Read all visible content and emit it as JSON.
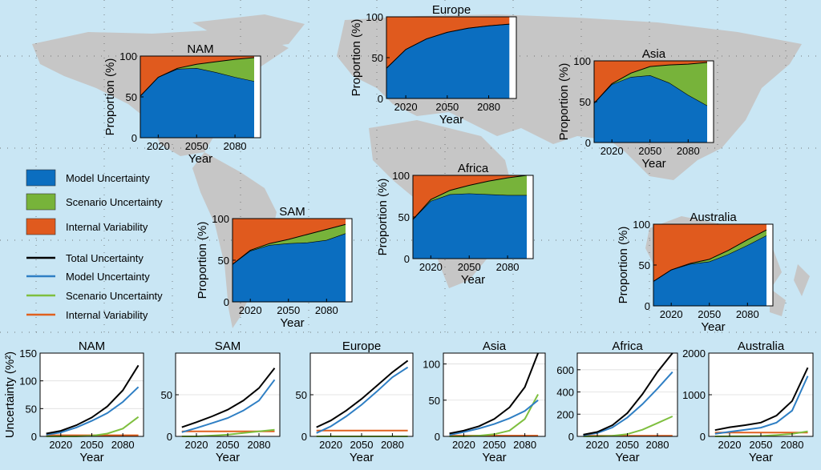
{
  "colors": {
    "ocean": "#c9e6f4",
    "land": "#c6c6c6",
    "model": "#0b6ec0",
    "scenario": "#77b33a",
    "internal": "#e05a1e",
    "total": "#000000",
    "model_line": "#2f7fc4",
    "scenario_line": "#7fbf3f",
    "internal_line": "#e0601e"
  },
  "legend": {
    "patches": [
      {
        "label": "Model Uncertainty",
        "color": "#0b6ec0"
      },
      {
        "label": "Scenario Uncertainty",
        "color": "#77b33a"
      },
      {
        "label": "Internal Variability",
        "color": "#e05a1e"
      }
    ],
    "lines": [
      {
        "label": "Total Uncertainty",
        "color": "#000000"
      },
      {
        "label": "Model Uncertainty",
        "color": "#2f7fc4"
      },
      {
        "label": "Scenario Uncertainty",
        "color": "#7fbf3f"
      },
      {
        "label": "Internal Variability",
        "color": "#e0601e"
      }
    ]
  },
  "chart_data": [
    {
      "type": "area",
      "title": "NAM",
      "xlabel": "Year",
      "ylabel": "Proportion (%)",
      "xlim": [
        2006,
        2100
      ],
      "ylim": [
        0,
        100
      ],
      "xticks": [
        2020,
        2050,
        2080
      ],
      "yticks": [
        0,
        50,
        100
      ],
      "x": [
        2006,
        2020,
        2035,
        2050,
        2065,
        2080,
        2095
      ],
      "series": [
        {
          "name": "Model Uncertainty",
          "values": [
            51,
            74,
            84,
            85,
            80,
            74,
            69
          ]
        },
        {
          "name": "Scenario Uncertainty",
          "values": [
            0,
            0,
            1,
            5,
            13,
            22,
            29
          ]
        },
        {
          "name": "Internal Variability",
          "values": [
            49,
            26,
            15,
            10,
            7,
            4,
            2
          ]
        }
      ]
    },
    {
      "type": "area",
      "title": "Europe",
      "xlabel": "Year",
      "ylabel": "Proportion (%)",
      "xlim": [
        2006,
        2100
      ],
      "ylim": [
        0,
        100
      ],
      "xticks": [
        2020,
        2050,
        2080
      ],
      "yticks": [
        0,
        50,
        100
      ],
      "x": [
        2006,
        2020,
        2035,
        2050,
        2065,
        2080,
        2095
      ],
      "series": [
        {
          "name": "Model Uncertainty",
          "values": [
            37,
            60,
            73,
            81,
            86,
            89,
            91
          ]
        },
        {
          "name": "Scenario Uncertainty",
          "values": [
            0,
            0,
            0,
            0,
            0,
            0,
            0
          ]
        },
        {
          "name": "Internal Variability",
          "values": [
            63,
            40,
            27,
            19,
            14,
            11,
            9
          ]
        }
      ]
    },
    {
      "type": "area",
      "title": "Asia",
      "xlabel": "Year",
      "ylabel": "Proportion (%)",
      "xlim": [
        2006,
        2100
      ],
      "ylim": [
        0,
        100
      ],
      "xticks": [
        2020,
        2050,
        2080
      ],
      "yticks": [
        0,
        50,
        100
      ],
      "x": [
        2006,
        2020,
        2035,
        2050,
        2065,
        2080,
        2095
      ],
      "series": [
        {
          "name": "Model Uncertainty",
          "values": [
            48,
            71,
            80,
            82,
            73,
            58,
            45
          ]
        },
        {
          "name": "Scenario Uncertainty",
          "values": [
            0,
            1,
            5,
            11,
            22,
            38,
            53
          ]
        },
        {
          "name": "Internal Variability",
          "values": [
            52,
            28,
            15,
            7,
            5,
            4,
            2
          ]
        }
      ]
    },
    {
      "type": "area",
      "title": "SAM",
      "xlabel": "Year",
      "ylabel": "Proportion (%)",
      "xlim": [
        2006,
        2100
      ],
      "ylim": [
        0,
        100
      ],
      "xticks": [
        2020,
        2050,
        2080
      ],
      "yticks": [
        0,
        50,
        100
      ],
      "x": [
        2006,
        2020,
        2035,
        2050,
        2065,
        2080,
        2095
      ],
      "series": [
        {
          "name": "Model Uncertainty",
          "values": [
            45,
            61,
            68,
            70,
            71,
            74,
            82
          ]
        },
        {
          "name": "Scenario Uncertainty",
          "values": [
            0,
            1,
            2,
            5,
            10,
            13,
            11
          ]
        },
        {
          "name": "Internal Variability",
          "values": [
            55,
            38,
            30,
            25,
            19,
            13,
            7
          ]
        }
      ]
    },
    {
      "type": "area",
      "title": "Africa",
      "xlabel": "Year",
      "ylabel": "Proportion (%)",
      "xlim": [
        2006,
        2100
      ],
      "ylim": [
        0,
        100
      ],
      "xticks": [
        2020,
        2050,
        2080
      ],
      "yticks": [
        0,
        50,
        100
      ],
      "x": [
        2006,
        2020,
        2035,
        2050,
        2065,
        2080,
        2095
      ],
      "series": [
        {
          "name": "Model Uncertainty",
          "values": [
            47,
            69,
            77,
            78,
            77,
            76,
            76
          ]
        },
        {
          "name": "Scenario Uncertainty",
          "values": [
            0,
            2,
            5,
            10,
            16,
            21,
            24
          ]
        },
        {
          "name": "Internal Variability",
          "values": [
            53,
            29,
            18,
            12,
            7,
            3,
            0
          ]
        }
      ]
    },
    {
      "type": "area",
      "title": "Australia",
      "xlabel": "Year",
      "ylabel": "Proportion (%)",
      "xlim": [
        2006,
        2100
      ],
      "ylim": [
        0,
        100
      ],
      "xticks": [
        2020,
        2050,
        2080
      ],
      "yticks": [
        0,
        50,
        100
      ],
      "x": [
        2006,
        2020,
        2035,
        2050,
        2065,
        2080,
        2095
      ],
      "series": [
        {
          "name": "Model Uncertainty",
          "values": [
            30,
            44,
            51,
            54,
            63,
            74,
            86
          ]
        },
        {
          "name": "Scenario Uncertainty",
          "values": [
            0,
            0,
            1,
            3,
            5,
            7,
            7
          ]
        },
        {
          "name": "Internal Variability",
          "values": [
            70,
            56,
            48,
            43,
            32,
            19,
            7
          ]
        }
      ]
    },
    {
      "type": "line",
      "title": "NAM",
      "xlabel": "Year",
      "ylabel": "Uncertainty (%²)",
      "xlim": [
        2000,
        2100
      ],
      "ylim": [
        0,
        150
      ],
      "xticks": [
        2020,
        2050,
        2080
      ],
      "yticks": [
        0,
        50,
        100,
        150
      ],
      "x": [
        2006,
        2020,
        2035,
        2050,
        2065,
        2080,
        2095
      ],
      "series": [
        {
          "name": "Total Uncertainty",
          "values": [
            5,
            10,
            20,
            34,
            54,
            83,
            128
          ]
        },
        {
          "name": "Model Uncertainty",
          "values": [
            3,
            7,
            16,
            28,
            42,
            62,
            89
          ]
        },
        {
          "name": "Scenario Uncertainty",
          "values": [
            0,
            0,
            0,
            1,
            5,
            14,
            35
          ]
        },
        {
          "name": "Internal Variability",
          "values": [
            2,
            2,
            2,
            2,
            2,
            2,
            2
          ]
        }
      ]
    },
    {
      "type": "line",
      "title": "SAM",
      "xlabel": "Year",
      "ylabel": "",
      "xlim": [
        2000,
        2100
      ],
      "ylim": [
        0,
        100
      ],
      "xticks": [
        2020,
        2050,
        2080
      ],
      "yticks": [
        0,
        50
      ],
      "x": [
        2006,
        2020,
        2035,
        2050,
        2065,
        2080,
        2095
      ],
      "series": [
        {
          "name": "Total Uncertainty",
          "values": [
            11,
            17,
            24,
            32,
            43,
            58,
            82
          ]
        },
        {
          "name": "Model Uncertainty",
          "values": [
            5,
            10,
            16,
            22,
            31,
            43,
            68
          ]
        },
        {
          "name": "Scenario Uncertainty",
          "values": [
            0,
            0,
            1,
            2,
            4,
            6,
            8
          ]
        },
        {
          "name": "Internal Variability",
          "values": [
            6,
            6,
            6,
            6,
            6,
            6,
            6
          ]
        }
      ]
    },
    {
      "type": "line",
      "title": "Europe",
      "xlabel": "Year",
      "ylabel": "",
      "xlim": [
        2000,
        2100
      ],
      "ylim": [
        0,
        100
      ],
      "xticks": [
        2020,
        2050,
        2080
      ],
      "yticks": [
        0,
        50
      ],
      "x": [
        2006,
        2020,
        2035,
        2050,
        2065,
        2080,
        2095
      ],
      "series": [
        {
          "name": "Total Uncertainty",
          "values": [
            11,
            19,
            31,
            45,
            61,
            77,
            91
          ]
        },
        {
          "name": "Model Uncertainty",
          "values": [
            4,
            12,
            24,
            38,
            54,
            71,
            83
          ]
        },
        {
          "name": "Scenario Uncertainty",
          "values": [
            0,
            0,
            0,
            0,
            0,
            0,
            0
          ]
        },
        {
          "name": "Internal Variability",
          "values": [
            7,
            7,
            7,
            7,
            7,
            7,
            7
          ]
        }
      ]
    },
    {
      "type": "line",
      "title": "Asia",
      "xlabel": "Year",
      "ylabel": "",
      "xlim": [
        2000,
        2100
      ],
      "ylim": [
        0,
        115
      ],
      "xticks": [
        2020,
        2050,
        2080
      ],
      "yticks": [
        0,
        50,
        100
      ],
      "x": [
        2006,
        2020,
        2035,
        2050,
        2065,
        2080,
        2093
      ],
      "series": [
        {
          "name": "Total Uncertainty",
          "values": [
            4,
            8,
            14,
            24,
            40,
            68,
            115
          ]
        },
        {
          "name": "Model Uncertainty",
          "values": [
            2,
            6,
            11,
            17,
            25,
            35,
            50
          ]
        },
        {
          "name": "Scenario Uncertainty",
          "values": [
            0,
            0,
            1,
            3,
            8,
            24,
            58
          ]
        },
        {
          "name": "Internal Variability",
          "values": [
            1,
            1,
            1,
            1,
            1,
            1,
            1
          ]
        }
      ]
    },
    {
      "type": "line",
      "title": "Africa",
      "xlabel": "Year",
      "ylabel": "",
      "xlim": [
        2000,
        2100
      ],
      "ylim": [
        0,
        750
      ],
      "xticks": [
        2020,
        2050,
        2080
      ],
      "yticks": [
        0,
        200,
        400,
        600
      ],
      "x": [
        2006,
        2020,
        2035,
        2050,
        2065,
        2080,
        2095
      ],
      "series": [
        {
          "name": "Total Uncertainty",
          "values": [
            15,
            40,
            100,
            210,
            380,
            580,
            780
          ]
        },
        {
          "name": "Model Uncertainty",
          "values": [
            10,
            30,
            80,
            170,
            290,
            430,
            580
          ]
        },
        {
          "name": "Scenario Uncertainty",
          "values": [
            0,
            1,
            5,
            20,
            60,
            120,
            180
          ]
        },
        {
          "name": "Internal Variability",
          "values": [
            5,
            5,
            5,
            5,
            5,
            5,
            5
          ]
        }
      ]
    },
    {
      "type": "line",
      "title": "Australia",
      "xlabel": "Year",
      "ylabel": "",
      "xlim": [
        2000,
        2100
      ],
      "ylim": [
        0,
        2000
      ],
      "xticks": [
        2020,
        2050,
        2080
      ],
      "yticks": [
        0,
        1000,
        2000
      ],
      "x": [
        2006,
        2020,
        2035,
        2050,
        2065,
        2080,
        2095
      ],
      "series": [
        {
          "name": "Total Uncertainty",
          "values": [
            150,
            220,
            270,
            330,
            500,
            850,
            1650
          ]
        },
        {
          "name": "Model Uncertainty",
          "values": [
            60,
            110,
            160,
            210,
            330,
            620,
            1450
          ]
        },
        {
          "name": "Scenario Uncertainty",
          "values": [
            0,
            1,
            5,
            10,
            30,
            60,
            120
          ]
        },
        {
          "name": "Internal Variability",
          "values": [
            90,
            90,
            90,
            90,
            90,
            90,
            90
          ]
        }
      ]
    }
  ]
}
